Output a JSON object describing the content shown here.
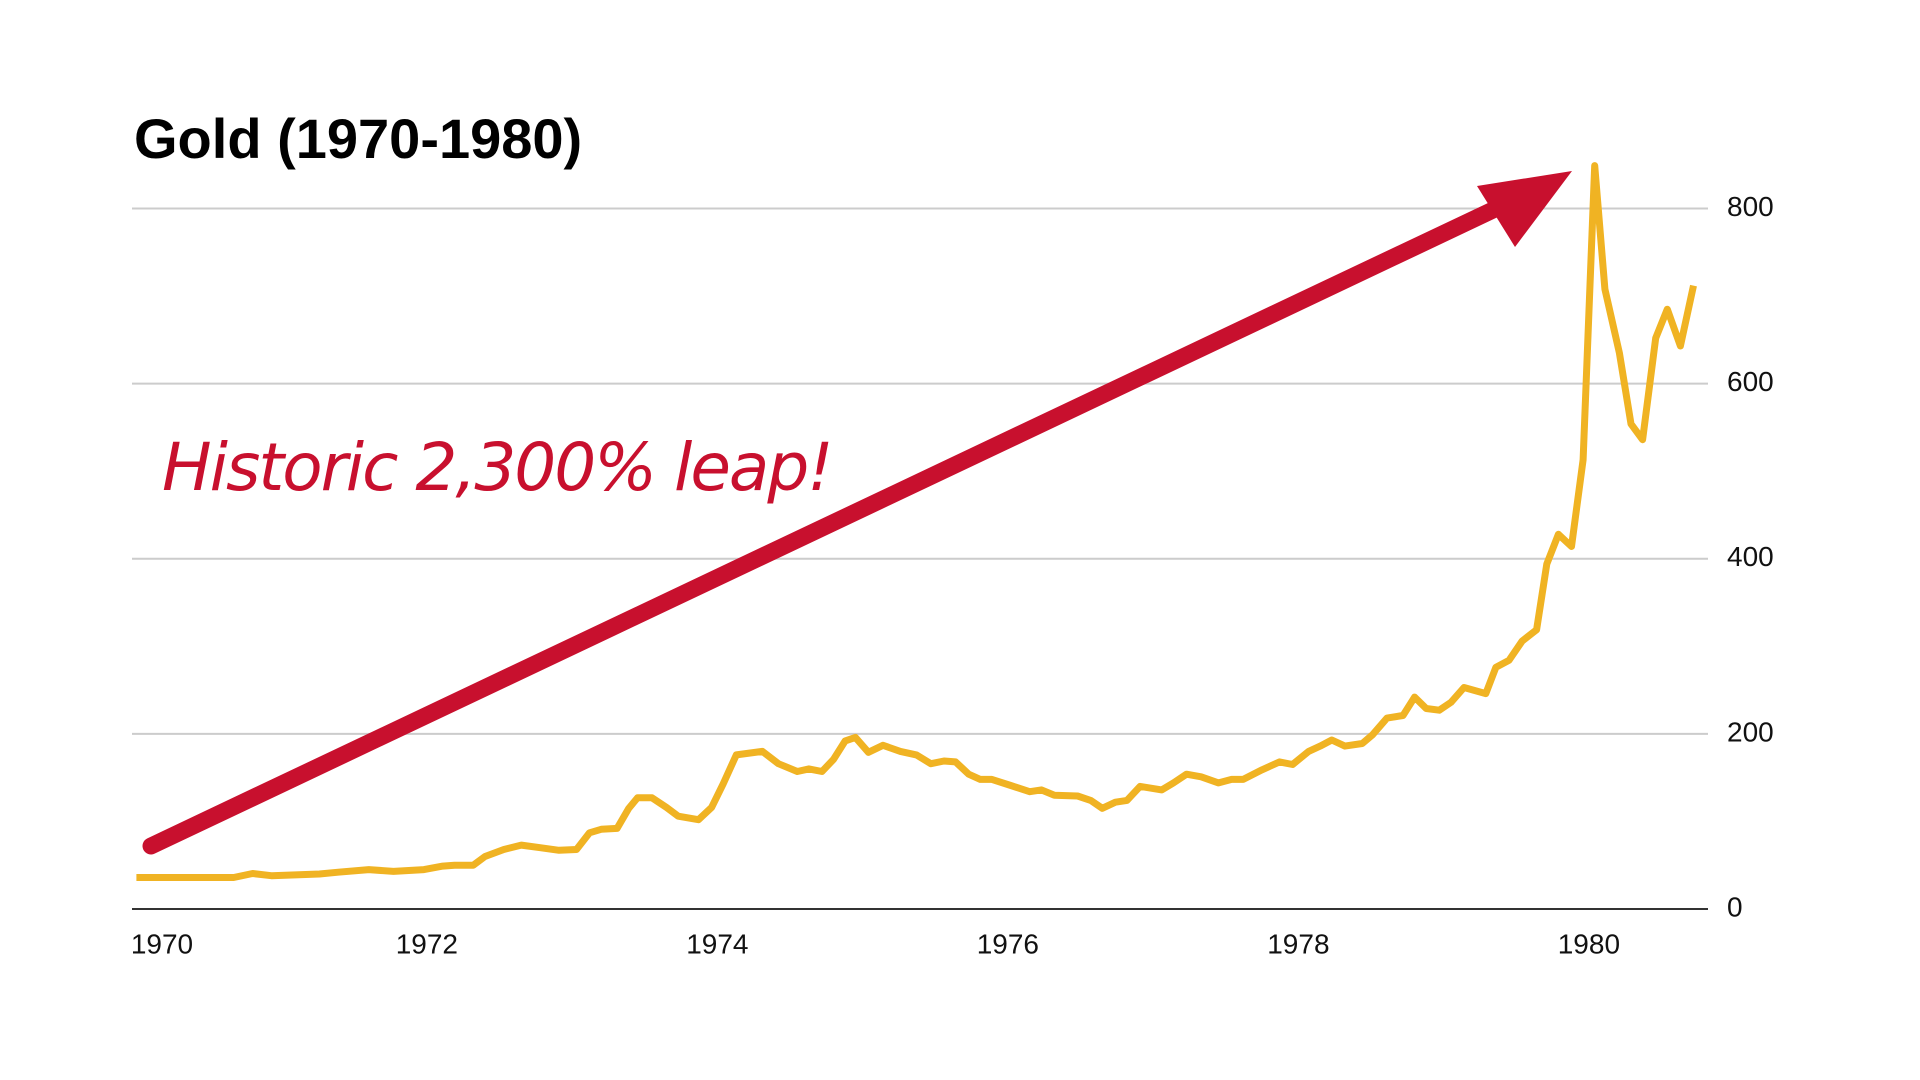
{
  "chart_data": {
    "type": "line",
    "title": "Gold (1970-1980)",
    "annotation": "Historic 2,300% leap!",
    "color": "#f0b323",
    "x": [
      1970.0,
      1970.34,
      1970.67,
      1970.8,
      1970.93,
      1971.26,
      1971.39,
      1971.6,
      1971.77,
      1971.98,
      1972.11,
      1972.19,
      1972.32,
      1972.4,
      1972.53,
      1972.65,
      1972.78,
      1972.91,
      1973.03,
      1973.12,
      1973.2,
      1973.31,
      1973.39,
      1973.45,
      1973.55,
      1973.65,
      1973.73,
      1973.87,
      1973.96,
      1974.04,
      1974.13,
      1974.31,
      1974.42,
      1974.55,
      1974.63,
      1974.72,
      1974.8,
      1974.88,
      1974.95,
      1975.04,
      1975.14,
      1975.26,
      1975.37,
      1975.47,
      1975.56,
      1975.64,
      1975.73,
      1975.81,
      1975.89,
      1976.02,
      1976.15,
      1976.23,
      1976.32,
      1976.48,
      1976.57,
      1976.65,
      1976.74,
      1976.82,
      1976.91,
      1977.06,
      1977.14,
      1977.23,
      1977.33,
      1977.45,
      1977.54,
      1977.62,
      1977.75,
      1977.87,
      1977.96,
      1978.07,
      1978.15,
      1978.23,
      1978.32,
      1978.44,
      1978.51,
      1978.61,
      1978.72,
      1978.8,
      1978.88,
      1978.97,
      1979.05,
      1979.14,
      1979.29,
      1979.36,
      1979.45,
      1979.54,
      1979.64,
      1979.71,
      1979.79,
      1979.88,
      1979.96,
      1980.04,
      1980.11,
      1980.21,
      1980.29,
      1980.37,
      1980.46,
      1980.54,
      1980.63,
      1980.72
    ],
    "values": [
      36,
      36,
      36,
      40.5,
      38,
      40,
      42,
      45,
      43,
      45,
      49,
      50,
      50,
      60,
      68,
      73,
      70,
      67,
      68,
      87,
      91,
      92,
      115,
      127,
      127,
      116,
      106,
      102,
      116,
      143,
      176,
      180,
      166,
      157,
      160,
      157,
      171,
      192,
      196,
      179,
      187,
      180,
      176,
      166,
      169,
      168,
      154,
      148,
      148,
      141,
      134,
      136,
      130,
      129,
      124,
      115,
      122,
      124,
      140,
      136,
      144,
      154,
      151,
      144,
      148,
      148,
      159,
      168,
      165,
      180,
      186,
      193,
      186,
      189,
      199,
      218,
      221,
      242,
      229,
      227,
      236,
      253,
      246,
      276,
      284,
      306,
      319,
      394,
      428,
      414,
      513,
      849,
      708,
      635,
      554,
      536,
      652,
      685,
      643,
      712
    ],
    "xlim": [
      1969.97,
      1980.82
    ],
    "xticks": [
      1970,
      1972,
      1974,
      1976,
      1978,
      1980
    ],
    "ylim": [
      0,
      860
    ],
    "yticks": [
      0,
      200,
      400,
      600,
      800
    ],
    "grid": true
  }
}
